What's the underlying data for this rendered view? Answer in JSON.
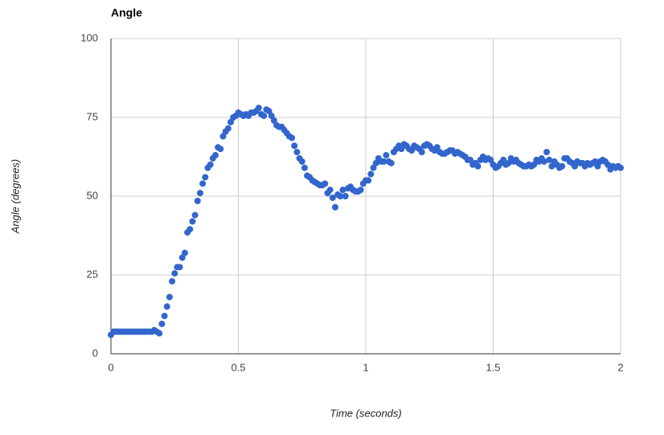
{
  "chart_data": {
    "type": "scatter",
    "title": "Angle",
    "x_label": "Time (seconds)",
    "y_label": "Angle (degrees)",
    "xlim": [
      0,
      2
    ],
    "xticks": [
      0,
      0.5,
      1,
      1.5,
      2
    ],
    "ylim": [
      0,
      100
    ],
    "yticks": [
      0,
      25,
      50,
      75,
      100
    ],
    "grid": true,
    "color": "#3366cc",
    "x": [
      0,
      0.01,
      0.02,
      0.03,
      0.04,
      0.05,
      0.06,
      0.07,
      0.08,
      0.09,
      0.1,
      0.11,
      0.12,
      0.13,
      0.14,
      0.15,
      0.16,
      0.17,
      0.18,
      0.19,
      0.2,
      0.21,
      0.22,
      0.23,
      0.24,
      0.25,
      0.26,
      0.27,
      0.28,
      0.29,
      0.3,
      0.31,
      0.32,
      0.33,
      0.34,
      0.35,
      0.36,
      0.37,
      0.38,
      0.39,
      0.4,
      0.41,
      0.42,
      0.43,
      0.44,
      0.45,
      0.46,
      0.47,
      0.48,
      0.49,
      0.5,
      0.51,
      0.52,
      0.53,
      0.54,
      0.55,
      0.56,
      0.57,
      0.58,
      0.59,
      0.6,
      0.61,
      0.62,
      0.63,
      0.64,
      0.65,
      0.66,
      0.67,
      0.68,
      0.69,
      0.7,
      0.71,
      0.72,
      0.73,
      0.74,
      0.75,
      0.76,
      0.77,
      0.78,
      0.79,
      0.8,
      0.81,
      0.82,
      0.83,
      0.84,
      0.85,
      0.86,
      0.87,
      0.88,
      0.89,
      0.9,
      0.91,
      0.92,
      0.93,
      0.94,
      0.95,
      0.96,
      0.97,
      0.98,
      0.99,
      1,
      1.01,
      1.02,
      1.03,
      1.04,
      1.05,
      1.06,
      1.07,
      1.08,
      1.09,
      1.1,
      1.11,
      1.12,
      1.13,
      1.14,
      1.15,
      1.16,
      1.17,
      1.18,
      1.19,
      1.2,
      1.21,
      1.22,
      1.23,
      1.24,
      1.25,
      1.26,
      1.27,
      1.28,
      1.29,
      1.3,
      1.31,
      1.32,
      1.33,
      1.34,
      1.35,
      1.36,
      1.37,
      1.38,
      1.39,
      1.4,
      1.41,
      1.42,
      1.43,
      1.44,
      1.45,
      1.46,
      1.47,
      1.48,
      1.49,
      1.5,
      1.51,
      1.52,
      1.53,
      1.54,
      1.55,
      1.56,
      1.57,
      1.58,
      1.59,
      1.6,
      1.61,
      1.62,
      1.63,
      1.64,
      1.65,
      1.66,
      1.67,
      1.68,
      1.69,
      1.7,
      1.71,
      1.72,
      1.73,
      1.74,
      1.75,
      1.76,
      1.77,
      1.78,
      1.79,
      1.8,
      1.81,
      1.82,
      1.83,
      1.84,
      1.85,
      1.86,
      1.87,
      1.88,
      1.89,
      1.9,
      1.91,
      1.92,
      1.93,
      1.94,
      1.95,
      1.96,
      1.97,
      1.98,
      1.99,
      2
    ],
    "values": [
      6,
      7,
      7,
      7,
      7,
      7,
      7,
      7,
      7,
      7,
      7,
      7,
      7,
      7,
      7,
      7,
      7,
      7.5,
      7,
      6.5,
      9.5,
      12,
      15,
      18,
      23,
      25.5,
      27.5,
      27.5,
      30.5,
      32,
      38.5,
      39.5,
      42,
      44,
      48.5,
      51,
      54,
      56,
      59,
      60,
      62,
      63,
      65.5,
      65,
      69,
      70.5,
      71.5,
      73.5,
      75,
      75.5,
      76.5,
      76,
      75.5,
      76,
      75.5,
      76.5,
      76.5,
      77,
      78,
      76,
      75.5,
      77.5,
      77,
      75.5,
      74,
      72.5,
      72,
      72,
      71,
      70,
      69,
      68.5,
      66,
      64,
      62,
      61,
      59,
      56.5,
      56,
      55,
      54.5,
      54,
      53.5,
      53.5,
      54,
      51,
      52,
      49.5,
      46.5,
      50.5,
      50,
      52,
      50,
      52.5,
      53,
      52,
      51.5,
      51.5,
      52,
      54,
      55,
      55,
      57,
      59,
      60.5,
      62,
      61,
      61,
      63,
      61,
      60.5,
      64,
      65,
      66,
      65,
      66.5,
      66,
      65,
      64.5,
      66,
      65.5,
      65,
      64,
      66,
      66.5,
      66,
      65,
      64.5,
      65.5,
      64,
      63.5,
      63.5,
      64,
      64.5,
      64.5,
      63.5,
      64,
      63.5,
      63,
      62.5,
      61.5,
      61.5,
      60,
      60.5,
      59.5,
      61.5,
      62.5,
      61.5,
      62,
      61.5,
      60,
      59,
      59.5,
      60.5,
      61.5,
      60,
      60.5,
      62,
      61,
      61.5,
      60.5,
      60,
      59.5,
      59.5,
      60,
      59.5,
      60,
      61.5,
      61,
      62,
      61,
      64,
      61.5,
      59.5,
      61,
      60,
      59,
      59.5,
      62,
      62,
      61,
      60.5,
      59.5,
      61,
      60.5,
      60.5,
      59.5,
      60.5,
      60,
      60.5,
      61,
      59.5,
      61,
      61.5,
      61,
      60,
      58.5,
      59.5,
      59,
      59.5,
      59
    ]
  }
}
